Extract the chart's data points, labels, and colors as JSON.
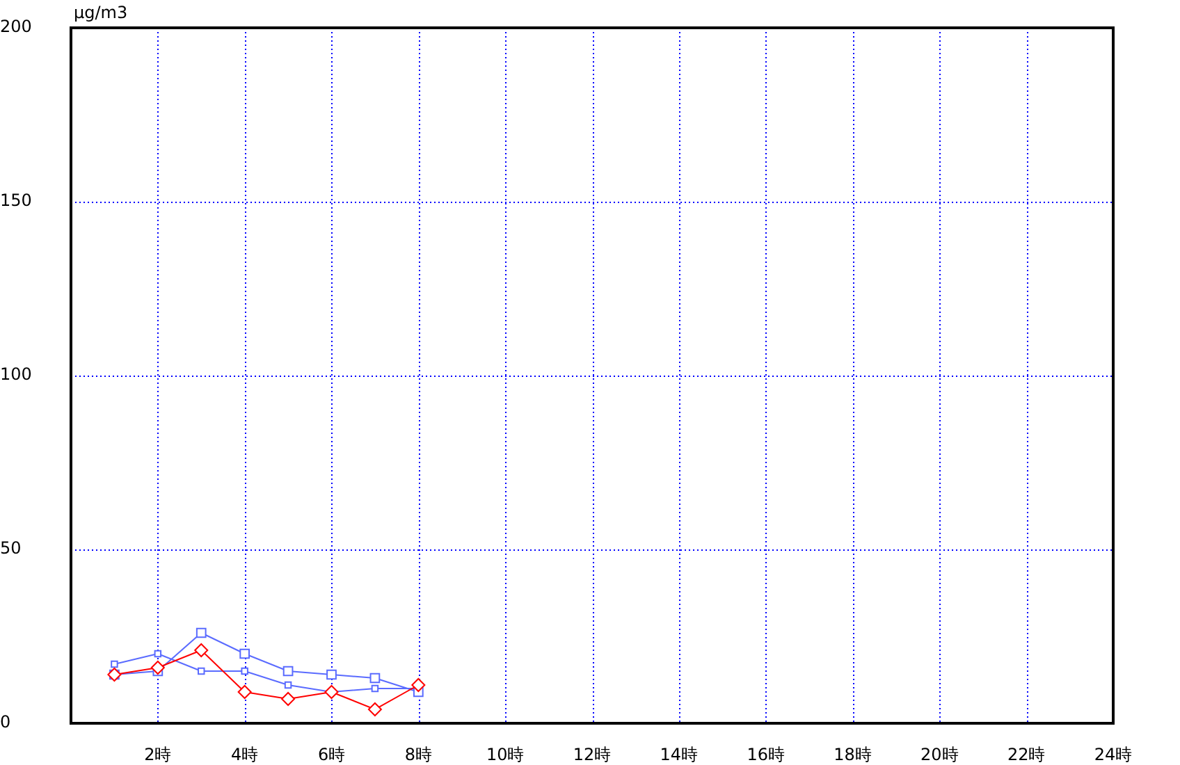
{
  "chart_data": {
    "type": "line",
    "ylabel": "μg/m3",
    "x": [
      1,
      2,
      3,
      4,
      5,
      6,
      7,
      8
    ],
    "xlim": [
      0,
      24
    ],
    "xticks": [
      {
        "value": 2,
        "label": "2時"
      },
      {
        "value": 4,
        "label": "4時"
      },
      {
        "value": 6,
        "label": "6時"
      },
      {
        "value": 8,
        "label": "8時"
      },
      {
        "value": 10,
        "label": "10時"
      },
      {
        "value": 12,
        "label": "12時"
      },
      {
        "value": 14,
        "label": "14時"
      },
      {
        "value": 16,
        "label": "16時"
      },
      {
        "value": 18,
        "label": "18時"
      },
      {
        "value": 20,
        "label": "20時"
      },
      {
        "value": 22,
        "label": "22時"
      },
      {
        "value": 24,
        "label": "24時"
      }
    ],
    "ylim": [
      0,
      200
    ],
    "yticks": [
      0,
      50,
      100,
      150,
      200
    ],
    "grid": true,
    "legend": false,
    "line_style": "solid",
    "series": [
      {
        "color": "#ff0000",
        "marker": "diamond",
        "values": [
          14,
          16,
          21,
          9,
          7,
          9,
          4,
          11
        ]
      },
      {
        "color": "#5a6bff",
        "marker": "square",
        "values": [
          14,
          15,
          26,
          20,
          15,
          14,
          13,
          9
        ]
      },
      {
        "color": "#5a6bff",
        "marker": "square",
        "values": [
          17,
          20,
          15,
          15,
          11,
          9,
          10,
          10
        ]
      }
    ]
  }
}
